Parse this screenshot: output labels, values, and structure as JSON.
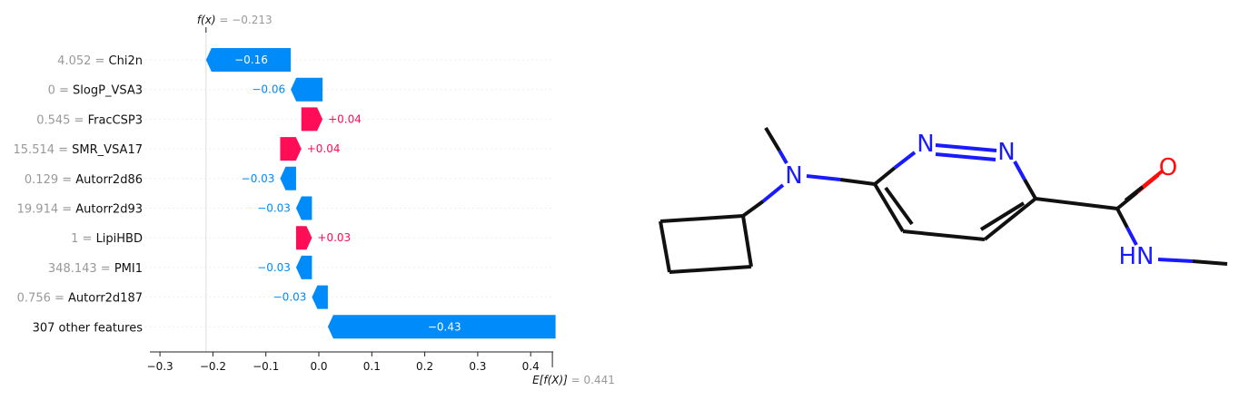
{
  "chart_data": {
    "type": "waterfall",
    "fx_label": "f(x)",
    "fx_value": "−0.213",
    "fx": -0.213,
    "base_label": "E[f(X)]",
    "base_value": "0.441",
    "base": 0.441,
    "xlim": [
      -0.33,
      0.44
    ],
    "xticks": [
      -0.3,
      -0.2,
      -0.1,
      0.0,
      0.1,
      0.2,
      0.3,
      0.4
    ],
    "xtick_labels": [
      "−0.3",
      "−0.2",
      "−0.1",
      "0.0",
      "0.1",
      "0.2",
      "0.3",
      "0.4"
    ],
    "colors": {
      "positive": "#ff0d57",
      "negative": "#008bfb",
      "value_text": "#999999",
      "name_text": "#111111"
    },
    "features": [
      {
        "value": "4.052",
        "name": "Chi2n",
        "contribution": -0.16,
        "label": "−0.16"
      },
      {
        "value": "0",
        "name": "SlogP_VSA3",
        "contribution": -0.06,
        "label": "−0.06"
      },
      {
        "value": "0.545",
        "name": "FracCSP3",
        "contribution": 0.04,
        "label": "+0.04"
      },
      {
        "value": "15.514",
        "name": "SMR_VSA17",
        "contribution": 0.04,
        "label": "+0.04"
      },
      {
        "value": "0.129",
        "name": "Autorr2d86",
        "contribution": -0.03,
        "label": "−0.03"
      },
      {
        "value": "19.914",
        "name": "Autorr2d93",
        "contribution": -0.03,
        "label": "−0.03"
      },
      {
        "value": "1",
        "name": "LipiHBD",
        "contribution": 0.03,
        "label": "+0.03"
      },
      {
        "value": "348.143",
        "name": "PMI1",
        "contribution": -0.03,
        "label": "−0.03"
      },
      {
        "value": "0.756",
        "name": "Autorr2d187",
        "contribution": -0.03,
        "label": "−0.03"
      },
      {
        "value": "",
        "name": "307 other features",
        "contribution": -0.43,
        "label": "−0.43"
      }
    ]
  },
  "molecule": {
    "atom_labels": [
      "N",
      "N",
      "N",
      "O",
      "HN"
    ],
    "colors": {
      "bond": "#111111",
      "nitrogen": "#1a1aff",
      "oxygen": "#ff0d0d"
    }
  }
}
